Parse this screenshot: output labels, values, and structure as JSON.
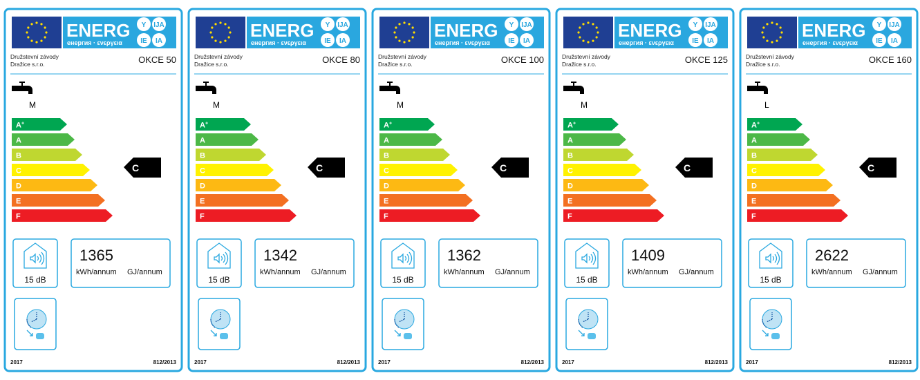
{
  "labels": [
    {
      "header": {
        "energ": "ENERG",
        "subtitle": "енергия · ενεργεια",
        "languages": [
          "Y",
          "IJA",
          "IE",
          "IA"
        ]
      },
      "manufacturer": [
        "Družstevní závody",
        "Dražice s.r.o."
      ],
      "model": "OKCE 50",
      "load_profile": "M",
      "scale": [
        {
          "letter": "A",
          "sup": "+"
        },
        {
          "letter": "A"
        },
        {
          "letter": "B"
        },
        {
          "letter": "C"
        },
        {
          "letter": "D"
        },
        {
          "letter": "E"
        },
        {
          "letter": "F"
        }
      ],
      "rating": "C",
      "noise": "15 dB",
      "annual_energy": 1365,
      "energy_unit": "kWh/annum",
      "gj_unit": "GJ/annum",
      "year": "2017",
      "regulation": "812/2013"
    },
    {
      "header": {
        "energ": "ENERG",
        "subtitle": "енергия · ενεργεια",
        "languages": [
          "Y",
          "IJA",
          "IE",
          "IA"
        ]
      },
      "manufacturer": [
        "Družstevní závody",
        "Dražice s.r.o."
      ],
      "model": "OKCE 80",
      "load_profile": "M",
      "scale": [
        {
          "letter": "A",
          "sup": "+"
        },
        {
          "letter": "A"
        },
        {
          "letter": "B"
        },
        {
          "letter": "C"
        },
        {
          "letter": "D"
        },
        {
          "letter": "E"
        },
        {
          "letter": "F"
        }
      ],
      "rating": "C",
      "noise": "15 dB",
      "annual_energy": 1342,
      "energy_unit": "kWh/annum",
      "gj_unit": "GJ/annum",
      "year": "2017",
      "regulation": "812/2013"
    },
    {
      "header": {
        "energ": "ENERG",
        "subtitle": "енергия · ενεργεια",
        "languages": [
          "Y",
          "IJA",
          "IE",
          "IA"
        ]
      },
      "manufacturer": [
        "Družstevní závody",
        "Dražice s.r.o."
      ],
      "model": "OKCE 100",
      "load_profile": "M",
      "scale": [
        {
          "letter": "A",
          "sup": "+"
        },
        {
          "letter": "A"
        },
        {
          "letter": "B"
        },
        {
          "letter": "C"
        },
        {
          "letter": "D"
        },
        {
          "letter": "E"
        },
        {
          "letter": "F"
        }
      ],
      "rating": "C",
      "noise": "15 dB",
      "annual_energy": 1362,
      "energy_unit": "kWh/annum",
      "gj_unit": "GJ/annum",
      "year": "2017",
      "regulation": "812/2013"
    },
    {
      "header": {
        "energ": "ENERG",
        "subtitle": "енергия · ενεργεια",
        "languages": [
          "Y",
          "IJA",
          "IE",
          "IA"
        ]
      },
      "manufacturer": [
        "Družstevní závody",
        "Dražice s.r.o."
      ],
      "model": "OKCE 125",
      "load_profile": "M",
      "scale": [
        {
          "letter": "A",
          "sup": "+"
        },
        {
          "letter": "A"
        },
        {
          "letter": "B"
        },
        {
          "letter": "C"
        },
        {
          "letter": "D"
        },
        {
          "letter": "E"
        },
        {
          "letter": "F"
        }
      ],
      "rating": "C",
      "noise": "15 dB",
      "annual_energy": 1409,
      "energy_unit": "kWh/annum",
      "gj_unit": "GJ/annum",
      "year": "2017",
      "regulation": "812/2013"
    },
    {
      "header": {
        "energ": "ENERG",
        "subtitle": "енергия · ενεργεια",
        "languages": [
          "Y",
          "IJA",
          "IE",
          "IA"
        ]
      },
      "manufacturer": [
        "Družstevní závody",
        "Dražice s.r.o."
      ],
      "model": "OKCE 160",
      "load_profile": "L",
      "scale": [
        {
          "letter": "A",
          "sup": "+"
        },
        {
          "letter": "A"
        },
        {
          "letter": "B"
        },
        {
          "letter": "C"
        },
        {
          "letter": "D"
        },
        {
          "letter": "E"
        },
        {
          "letter": "F"
        }
      ],
      "rating": "C",
      "noise": "15 dB",
      "annual_energy": 2622,
      "energy_unit": "kWh/annum",
      "gj_unit": "GJ/annum",
      "year": "2017",
      "regulation": "812/2013"
    }
  ]
}
